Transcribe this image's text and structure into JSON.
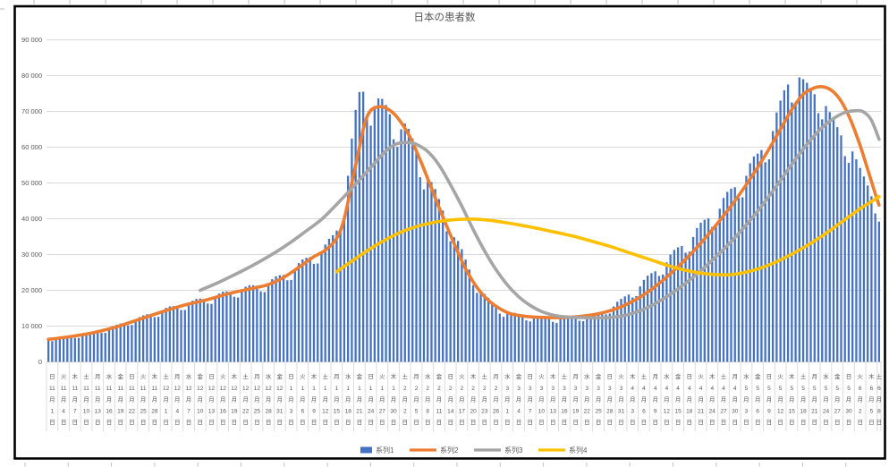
{
  "app": {
    "context": "excel-embedded-chart",
    "background": "#ffffff",
    "chart_border_color": "#000000",
    "cell_tick_color": "#bfbfbf"
  },
  "chart_data": {
    "type": "combo",
    "title": "日本の患者数",
    "title_color": "#595959",
    "grid": true,
    "grid_color": "#d9d9d9",
    "axis_text_color": "#595959",
    "ylim": [
      0,
      90000
    ],
    "y_step": 10000,
    "y_tick_labels": [
      "0",
      "10 000",
      "20 000",
      "30 000",
      "40 000",
      "50 000",
      "60 000",
      "70 000",
      "80 000",
      "90 000"
    ],
    "x_days_total": 220,
    "x_label_every_days": 3,
    "x_labels": [
      {
        "w": "日",
        "m": "11",
        "d": "1"
      },
      {
        "w": "火",
        "m": "11",
        "d": "4"
      },
      {
        "w": "木",
        "m": "11",
        "d": "7"
      },
      {
        "w": "土",
        "m": "11",
        "d": "10"
      },
      {
        "w": "月",
        "m": "11",
        "d": "13"
      },
      {
        "w": "水",
        "m": "11",
        "d": "16"
      },
      {
        "w": "金",
        "m": "11",
        "d": "19"
      },
      {
        "w": "日",
        "m": "11",
        "d": "22"
      },
      {
        "w": "火",
        "m": "11",
        "d": "25"
      },
      {
        "w": "木",
        "m": "11",
        "d": "28"
      },
      {
        "w": "土",
        "m": "12",
        "d": "1"
      },
      {
        "w": "月",
        "m": "12",
        "d": "4"
      },
      {
        "w": "水",
        "m": "12",
        "d": "7"
      },
      {
        "w": "金",
        "m": "12",
        "d": "10"
      },
      {
        "w": "日",
        "m": "12",
        "d": "13"
      },
      {
        "w": "火",
        "m": "12",
        "d": "16"
      },
      {
        "w": "木",
        "m": "12",
        "d": "19"
      },
      {
        "w": "土",
        "m": "12",
        "d": "22"
      },
      {
        "w": "月",
        "m": "12",
        "d": "25"
      },
      {
        "w": "水",
        "m": "12",
        "d": "28"
      },
      {
        "w": "金",
        "m": "12",
        "d": "31"
      },
      {
        "w": "日",
        "m": "1",
        "d": "3"
      },
      {
        "w": "火",
        "m": "1",
        "d": "6"
      },
      {
        "w": "木",
        "m": "1",
        "d": "9"
      },
      {
        "w": "土",
        "m": "1",
        "d": "12"
      },
      {
        "w": "月",
        "m": "1",
        "d": "15"
      },
      {
        "w": "水",
        "m": "1",
        "d": "18"
      },
      {
        "w": "金",
        "m": "1",
        "d": "21"
      },
      {
        "w": "日",
        "m": "1",
        "d": "24"
      },
      {
        "w": "火",
        "m": "1",
        "d": "27"
      },
      {
        "w": "木",
        "m": "1",
        "d": "30"
      },
      {
        "w": "土",
        "m": "2",
        "d": "2"
      },
      {
        "w": "月",
        "m": "2",
        "d": "5"
      },
      {
        "w": "水",
        "m": "2",
        "d": "8"
      },
      {
        "w": "金",
        "m": "2",
        "d": "11"
      },
      {
        "w": "日",
        "m": "2",
        "d": "14"
      },
      {
        "w": "火",
        "m": "2",
        "d": "17"
      },
      {
        "w": "木",
        "m": "2",
        "d": "20"
      },
      {
        "w": "土",
        "m": "2",
        "d": "23"
      },
      {
        "w": "月",
        "m": "2",
        "d": "26"
      },
      {
        "w": "水",
        "m": "3",
        "d": "1"
      },
      {
        "w": "金",
        "m": "3",
        "d": "4"
      },
      {
        "w": "日",
        "m": "3",
        "d": "7"
      },
      {
        "w": "火",
        "m": "3",
        "d": "10"
      },
      {
        "w": "木",
        "m": "3",
        "d": "13"
      },
      {
        "w": "土",
        "m": "3",
        "d": "16"
      },
      {
        "w": "月",
        "m": "3",
        "d": "19"
      },
      {
        "w": "水",
        "m": "3",
        "d": "22"
      },
      {
        "w": "金",
        "m": "3",
        "d": "25"
      },
      {
        "w": "日",
        "m": "3",
        "d": "28"
      },
      {
        "w": "火",
        "m": "3",
        "d": "31"
      },
      {
        "w": "木",
        "m": "4",
        "d": "3"
      },
      {
        "w": "土",
        "m": "4",
        "d": "6"
      },
      {
        "w": "月",
        "m": "4",
        "d": "9"
      },
      {
        "w": "水",
        "m": "4",
        "d": "12"
      },
      {
        "w": "金",
        "m": "4",
        "d": "15"
      },
      {
        "w": "日",
        "m": "4",
        "d": "18"
      },
      {
        "w": "火",
        "m": "4",
        "d": "21"
      },
      {
        "w": "木",
        "m": "4",
        "d": "24"
      },
      {
        "w": "土",
        "m": "4",
        "d": "27"
      },
      {
        "w": "月",
        "m": "4",
        "d": "30"
      },
      {
        "w": "水",
        "m": "5",
        "d": "3"
      },
      {
        "w": "金",
        "m": "5",
        "d": "6"
      },
      {
        "w": "日",
        "m": "5",
        "d": "9"
      },
      {
        "w": "火",
        "m": "5",
        "d": "12"
      },
      {
        "w": "木",
        "m": "5",
        "d": "15"
      },
      {
        "w": "土",
        "m": "5",
        "d": "18"
      },
      {
        "w": "月",
        "m": "5",
        "d": "21"
      },
      {
        "w": "水",
        "m": "5",
        "d": "24"
      },
      {
        "w": "金",
        "m": "5",
        "d": "27"
      },
      {
        "w": "日",
        "m": "5",
        "d": "30"
      },
      {
        "w": "火",
        "m": "6",
        "d": "2"
      },
      {
        "w": "木",
        "m": "6",
        "d": "5"
      },
      {
        "w": "土",
        "m": "6",
        "d": "8"
      }
    ],
    "series": [
      {
        "name": "系列1",
        "type": "bar",
        "color": "#4472C4",
        "values": [
          5900,
          5800,
          6500,
          6900,
          7100,
          7200,
          7200,
          6700,
          6700,
          7500,
          8000,
          8300,
          8500,
          8600,
          8100,
          8100,
          9200,
          10000,
          10400,
          10700,
          10800,
          10200,
          10300,
          11700,
          12500,
          13000,
          13300,
          13400,
          12500,
          12600,
          14200,
          15100,
          15500,
          15600,
          15600,
          14500,
          14500,
          16200,
          17100,
          17600,
          17700,
          17600,
          16300,
          16200,
          18100,
          19100,
          19600,
          19700,
          19600,
          18200,
          18000,
          20000,
          21000,
          21400,
          21400,
          21300,
          19700,
          19500,
          21700,
          23100,
          23900,
          24200,
          24300,
          22800,
          22900,
          25800,
          27600,
          28600,
          29100,
          29300,
          27400,
          27500,
          30800,
          32800,
          34400,
          35400,
          36700,
          36700,
          41000,
          52000,
          62400,
          70400,
          75400,
          75500,
          68400,
          66000,
          71500,
          73600,
          73500,
          71800,
          69200,
          62200,
          60100,
          65000,
          66600,
          65100,
          62400,
          58900,
          51600,
          48200,
          50500,
          50200,
          48300,
          45500,
          42300,
          36500,
          33700,
          34800,
          33800,
          31500,
          28600,
          25800,
          21400,
          19300,
          19500,
          19000,
          17900,
          16700,
          15500,
          13500,
          12600,
          13600,
          13800,
          13700,
          13300,
          12900,
          11600,
          11300,
          12400,
          12800,
          12800,
          12600,
          12300,
          11200,
          10900,
          12000,
          12500,
          12700,
          12600,
          12500,
          11500,
          11400,
          12600,
          13300,
          13700,
          13800,
          14100,
          13300,
          13500,
          15500,
          16800,
          17600,
          18300,
          18800,
          18000,
          18400,
          21100,
          22900,
          24100,
          24800,
          25300,
          24000,
          24400,
          27800,
          30000,
          31300,
          32000,
          32400,
          30500,
          30800,
          34900,
          37400,
          38900,
          39700,
          40100,
          37700,
          37900,
          42800,
          45800,
          47500,
          48400,
          48800,
          45800,
          46000,
          52000,
          55500,
          57400,
          58200,
          59200,
          55800,
          56600,
          64500,
          69700,
          73000,
          75900,
          77500,
          72500,
          72100,
          79500,
          79000,
          78000,
          76500,
          74800,
          69500,
          67800,
          71500,
          69800,
          67800,
          65600,
          63300,
          57500,
          55600,
          58800,
          56600,
          54200,
          51800,
          49300,
          46300,
          41500,
          39200
        ]
      },
      {
        "name": "系列2",
        "type": "line",
        "color": "#ED7D31",
        "points": [
          [
            0,
            6300
          ],
          [
            6,
            7100
          ],
          [
            12,
            8200
          ],
          [
            18,
            9800
          ],
          [
            24,
            11900
          ],
          [
            30,
            14000
          ],
          [
            36,
            15900
          ],
          [
            42,
            17400
          ],
          [
            48,
            19200
          ],
          [
            54,
            20600
          ],
          [
            58,
            21600
          ],
          [
            62,
            23600
          ],
          [
            66,
            26400
          ],
          [
            70,
            29400
          ],
          [
            73,
            31200
          ],
          [
            76,
            34500
          ],
          [
            78,
            40000
          ],
          [
            80,
            50000
          ],
          [
            82,
            60000
          ],
          [
            83,
            65000
          ],
          [
            84,
            68500
          ],
          [
            85,
            70300
          ],
          [
            86,
            71000
          ],
          [
            88,
            71300
          ],
          [
            90,
            70300
          ],
          [
            92,
            68300
          ],
          [
            95,
            63500
          ],
          [
            98,
            56500
          ],
          [
            101,
            48500
          ],
          [
            104,
            40500
          ],
          [
            107,
            33000
          ],
          [
            110,
            26000
          ],
          [
            113,
            20800
          ],
          [
            116,
            17200
          ],
          [
            119,
            14900
          ],
          [
            122,
            13400
          ],
          [
            126,
            12700
          ],
          [
            131,
            12400
          ],
          [
            136,
            12400
          ],
          [
            141,
            12800
          ],
          [
            146,
            13700
          ],
          [
            151,
            15400
          ],
          [
            156,
            18100
          ],
          [
            161,
            21900
          ],
          [
            166,
            26600
          ],
          [
            171,
            32000
          ],
          [
            176,
            38200
          ],
          [
            181,
            45000
          ],
          [
            186,
            52700
          ],
          [
            190,
            59500
          ],
          [
            193,
            65000
          ],
          [
            196,
            70500
          ],
          [
            199,
            74800
          ],
          [
            202,
            76600
          ],
          [
            204,
            76900
          ],
          [
            206,
            76200
          ],
          [
            208,
            74300
          ],
          [
            210,
            71000
          ],
          [
            212,
            66300
          ],
          [
            214,
            60500
          ],
          [
            216,
            53800
          ],
          [
            218,
            47000
          ],
          [
            219,
            43800
          ]
        ]
      },
      {
        "name": "系列3",
        "type": "line",
        "color": "#A5A5A5",
        "points": [
          [
            40,
            20000
          ],
          [
            44,
            21800
          ],
          [
            48,
            23800
          ],
          [
            52,
            25900
          ],
          [
            56,
            28200
          ],
          [
            60,
            30700
          ],
          [
            64,
            33500
          ],
          [
            68,
            36600
          ],
          [
            72,
            39800
          ],
          [
            76,
            44000
          ],
          [
            80,
            48500
          ],
          [
            83,
            52000
          ],
          [
            86,
            55500
          ],
          [
            89,
            59000
          ],
          [
            92,
            61000
          ],
          [
            95,
            61300
          ],
          [
            97,
            60800
          ],
          [
            100,
            58800
          ],
          [
            103,
            55000
          ],
          [
            106,
            49500
          ],
          [
            109,
            43500
          ],
          [
            112,
            37000
          ],
          [
            115,
            31000
          ],
          [
            118,
            25800
          ],
          [
            121,
            21500
          ],
          [
            124,
            18200
          ],
          [
            127,
            15800
          ],
          [
            130,
            14100
          ],
          [
            133,
            13100
          ],
          [
            136,
            12600
          ],
          [
            140,
            12400
          ],
          [
            144,
            12300
          ],
          [
            148,
            12400
          ],
          [
            152,
            13000
          ],
          [
            156,
            14300
          ],
          [
            160,
            16300
          ],
          [
            164,
            18900
          ],
          [
            168,
            22000
          ],
          [
            172,
            25500
          ],
          [
            176,
            29400
          ],
          [
            180,
            33600
          ],
          [
            184,
            38300
          ],
          [
            188,
            43500
          ],
          [
            192,
            49200
          ],
          [
            196,
            55200
          ],
          [
            200,
            60800
          ],
          [
            204,
            65500
          ],
          [
            207,
            68000
          ],
          [
            210,
            69700
          ],
          [
            213,
            70200
          ],
          [
            215,
            69800
          ],
          [
            217,
            67500
          ],
          [
            219,
            62200
          ]
        ]
      },
      {
        "name": "系列4",
        "type": "line",
        "color": "#FFC000",
        "points": [
          [
            76,
            25200
          ],
          [
            79,
            27400
          ],
          [
            82,
            29600
          ],
          [
            85,
            31700
          ],
          [
            88,
            33600
          ],
          [
            91,
            35300
          ],
          [
            94,
            36700
          ],
          [
            97,
            37800
          ],
          [
            100,
            38600
          ],
          [
            104,
            39400
          ],
          [
            108,
            39800
          ],
          [
            112,
            39900
          ],
          [
            116,
            39600
          ],
          [
            120,
            39000
          ],
          [
            124,
            38300
          ],
          [
            128,
            37500
          ],
          [
            132,
            36600
          ],
          [
            136,
            35700
          ],
          [
            140,
            34700
          ],
          [
            144,
            33500
          ],
          [
            148,
            32300
          ],
          [
            152,
            30900
          ],
          [
            156,
            29500
          ],
          [
            160,
            28100
          ],
          [
            164,
            26700
          ],
          [
            168,
            25600
          ],
          [
            172,
            24800
          ],
          [
            176,
            24400
          ],
          [
            180,
            24400
          ],
          [
            184,
            25100
          ],
          [
            188,
            26300
          ],
          [
            192,
            28000
          ],
          [
            196,
            30100
          ],
          [
            200,
            32500
          ],
          [
            204,
            35200
          ],
          [
            208,
            38200
          ],
          [
            212,
            41300
          ],
          [
            215,
            43500
          ],
          [
            217,
            44800
          ],
          [
            219,
            46200
          ]
        ]
      }
    ],
    "legend": {
      "position": "bottom",
      "items": [
        {
          "label": "系列1",
          "marker": "bar",
          "color": "#4472C4"
        },
        {
          "label": "系列2",
          "marker": "line",
          "color": "#ED7D31"
        },
        {
          "label": "系列3",
          "marker": "line",
          "color": "#A5A5A5"
        },
        {
          "label": "系列4",
          "marker": "line",
          "color": "#FFC000"
        }
      ]
    }
  }
}
